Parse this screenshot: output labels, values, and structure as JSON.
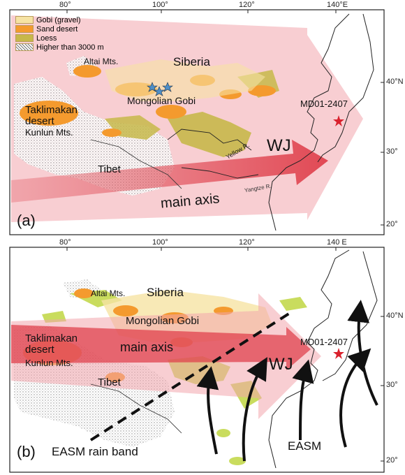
{
  "colors": {
    "gobi": "#f6e3a4",
    "sand": "#f49a2e",
    "loess": "#c7b84a",
    "high": "#8a7d7d",
    "arrow_a": "#f3a6ad",
    "main_axis": "#e0535e",
    "green_b": "#c9dc5e",
    "star": "#d9212d",
    "blue_star": "#4f8fc9"
  },
  "panel_a": {
    "legend": [
      {
        "label": "Gobi (gravel)",
        "swatch": "gobi"
      },
      {
        "label": "Sand desert",
        "swatch": "sand"
      },
      {
        "label": "Loess",
        "swatch": "loess"
      },
      {
        "label": "Higher than 3000 m",
        "swatch": "high"
      }
    ],
    "labels": {
      "altai": "Altai Mts.",
      "siberia": "Siberia",
      "mongolian_gobi": "Mongolian Gobi",
      "taklimakan": "Taklimakan\ndesert",
      "kunlun": "Kunlun Mts.",
      "tibet": "Tibet",
      "wj": "WJ",
      "yellow_r": "Yellow R.",
      "yangtze_r": "Yangtze R.",
      "main_axis": "main axis",
      "core": "MD01-2407",
      "panel": "(a)"
    },
    "top_ticks": [
      "80°",
      "100°",
      "120°",
      "140°E"
    ],
    "right_ticks": [
      "40°N",
      "30°",
      "20°"
    ]
  },
  "panel_b": {
    "labels": {
      "altai": "Altai Mts.",
      "siberia": "Siberia",
      "mongolian_gobi": "Mongolian Gobi",
      "taklimakan": "Taklimakan\ndesert",
      "kunlun": "Kunlun Mts.",
      "tibet": "Tibet",
      "main_axis": "main axis",
      "wj": "WJ",
      "core": "MD01-2407",
      "easm": "EASM",
      "rain_band": "EASM rain band",
      "panel": "(b)"
    },
    "top_ticks": [
      "80°",
      "100°",
      "120°",
      "140 E"
    ],
    "right_ticks": [
      "40°N",
      "30°",
      "20°"
    ]
  }
}
